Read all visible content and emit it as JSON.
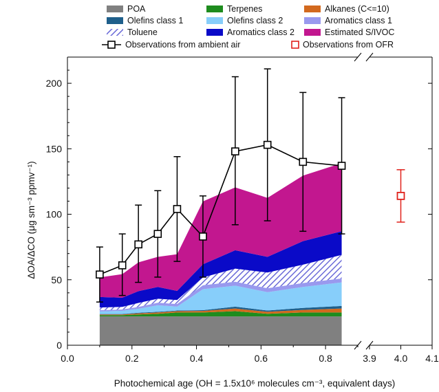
{
  "chart_data": {
    "type": "area",
    "xlabel": "Photochemical age (OH = 1.5x10⁶ molecules cm⁻³, equivalent days)",
    "ylabel": "ΔOA/ΔCO (μg sm⁻³ ppmv⁻¹)",
    "x": [
      0.1,
      0.17,
      0.22,
      0.28,
      0.34,
      0.42,
      0.52,
      0.62,
      0.73,
      0.85
    ],
    "xlim": [
      0.0,
      0.9
    ],
    "xlim_break": [
      3.9,
      4.1
    ],
    "ylim": [
      0,
      220
    ],
    "xticks": [
      "0.0",
      "0.2",
      "0.4",
      "0.6",
      "0.8"
    ],
    "xticks_break": [
      "3.9",
      "4.0",
      "4.1"
    ],
    "yticks": [
      "0",
      "50",
      "100",
      "150",
      "200"
    ],
    "grid": false,
    "legend_position": "top",
    "stacked_series": [
      {
        "name": "POA",
        "color": "#808080",
        "pattern": "solid",
        "values": [
          22,
          22,
          22,
          22,
          22,
          22,
          22,
          22,
          22,
          22
        ]
      },
      {
        "name": "Terpenes",
        "color": "#1e8c1e",
        "pattern": "solid",
        "values": [
          1,
          1,
          1.5,
          2,
          3,
          3,
          4,
          2,
          3,
          3
        ]
      },
      {
        "name": "Alkanes (C<=10)",
        "color": "#d2691e",
        "pattern": "solid",
        "values": [
          0.5,
          0.5,
          0.8,
          1,
          1,
          1.2,
          2,
          1.5,
          2,
          3
        ]
      },
      {
        "name": "Olefins class 1",
        "color": "#1f5f8b",
        "pattern": "solid",
        "values": [
          0.3,
          0.3,
          0.5,
          0.5,
          0.5,
          0.6,
          1.5,
          1,
          1.5,
          2
        ]
      },
      {
        "name": "Olefins class 2",
        "color": "#87cefa",
        "pattern": "solid",
        "values": [
          2,
          2.5,
          3,
          5,
          3,
          16,
          16,
          14,
          16,
          18
        ]
      },
      {
        "name": "Aromatics class 1",
        "color": "#9999ee",
        "pattern": "solid",
        "values": [
          1,
          1,
          1.5,
          2,
          2,
          3,
          3,
          3,
          3,
          3
        ]
      },
      {
        "name": "Toluene",
        "color": "#6a6ad8",
        "pattern": "hatch",
        "values": [
          2,
          2,
          3,
          3,
          3,
          6,
          10,
          12,
          14,
          18
        ]
      },
      {
        "name": "Aromatics class 2",
        "color": "#0a0ac8",
        "pattern": "solid",
        "values": [
          8,
          7,
          9,
          9,
          7,
          10,
          14,
          12,
          18,
          18
        ]
      },
      {
        "name": "Estimated S/IVOC",
        "color": "#c2178f",
        "pattern": "solid",
        "values": [
          15,
          18,
          22,
          23,
          28,
          48,
          48,
          45,
          50,
          52
        ]
      }
    ],
    "observations_ambient": {
      "name": "Observations from ambient air",
      "color": "#000000",
      "y": [
        54,
        61,
        77,
        85,
        104,
        83,
        148,
        153,
        140,
        137
      ],
      "err_upper": [
        75,
        85,
        107,
        118,
        144,
        114,
        205,
        211,
        193,
        189
      ],
      "err_lower": [
        33,
        38,
        48,
        52,
        64,
        52,
        92,
        95,
        87,
        85
      ]
    },
    "observations_ofr": {
      "name": "Observations from OFR",
      "color": "#e0201a",
      "x": 4.0,
      "y": 114,
      "err_upper": 134,
      "err_lower": 94
    }
  }
}
